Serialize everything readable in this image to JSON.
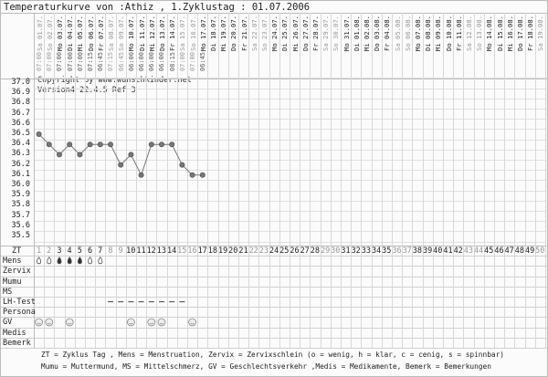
{
  "title": "Temperaturkurve von :Athiz , 1.Zyklustag : 01.07.2006",
  "copyright": "Copyright by www.wunschkinder.net",
  "version": "Version4 22.4.5 Ref 3",
  "dates": [
    "Sa 01.07.",
    "So 02.07.",
    "Mo 03.07.",
    "Di 04.07.",
    "Mi 05.07.",
    "Do 06.07.",
    "Fr 07.07.",
    "Sa 08.07.",
    "So 09.07.",
    "Mo 10.07.",
    "Di 11.07.",
    "Mi 12.07.",
    "Do 13.07.",
    "Fr 14.07.",
    "Sa 15.07.",
    "So 16.07.",
    "Mo 17.07.",
    "Di 18.07.",
    "Mi 19.07.",
    "Do 20.07.",
    "Fr 21.07.",
    "Sa 22.07.",
    "So 23.07.",
    "Mo 24.07.",
    "Di 25.07.",
    "Mi 26.07.",
    "Do 27.07.",
    "Fr 28.07.",
    "Sa 29.07.",
    "So 30.07.",
    "Mo 31.07.",
    "Di 01.08.",
    "Mi 02.08.",
    "Do 03.08.",
    "Fr 04.08.",
    "Sa 05.08.",
    "So 06.08.",
    "Mo 07.08.",
    "Di 08.08.",
    "Mi 09.08.",
    "Do 10.08.",
    "Fr 11.08.",
    "Sa 12.08.",
    "So 13.08.",
    "Mo 14.08.",
    "Di 15.08.",
    "Mi 16.08.",
    "Do 17.08.",
    "Fr 18.08.",
    "Sa 19.08."
  ],
  "times": [
    "07:00",
    "07:00",
    "07:00",
    "07:00",
    "07:00",
    "07:15",
    "06:45",
    "07:15",
    "06:45",
    "06:00",
    "06:00",
    "06:00",
    "06:00",
    "08:15",
    "07:00",
    "07:00",
    "06:45"
  ],
  "row_labels": [
    "ZT",
    "Mens",
    "Zervix",
    "Mumu",
    "MS",
    "LH-Test",
    "Persona",
    "GV",
    "Medis",
    "Bemerk"
  ],
  "legend": [
    "ZT = Zyklus Tag , Mens = Menstruation, Zervix = Zervixschlein (o = wenig, h = klar, c = cenig, s = spinnbar)",
    "Mumu = Muttermund, MS = Mittelschmerz, GV = Geschlechtsverkehr ,Medis = Medikamente, Bemerk = Bemerkungen"
  ],
  "chart_data": {
    "type": "line",
    "ylim": [
      35.5,
      37.0
    ],
    "yticks": [
      "37.0",
      "36.9",
      "36.8",
      "36.7",
      "36.6",
      "36.5",
      "36.4",
      "36.3",
      "36.2",
      "36.1",
      "36.0",
      "35.9",
      "35.8",
      "35.7",
      "35.6",
      "35.5"
    ],
    "x": [
      1,
      2,
      3,
      4,
      5,
      6,
      7,
      8,
      9,
      10,
      11,
      12,
      13,
      14,
      15,
      16,
      17
    ],
    "values": [
      36.5,
      36.4,
      36.3,
      36.4,
      36.3,
      36.4,
      36.4,
      36.4,
      36.2,
      36.3,
      36.1,
      36.4,
      36.4,
      36.4,
      36.2,
      36.1,
      36.1
    ],
    "cycle_days": 50,
    "grid": true,
    "line_color": "#777777",
    "mens": {
      "light": [
        1,
        2,
        6,
        7
      ],
      "heavy": [
        3,
        4,
        5
      ]
    },
    "lh_test_negative": [
      8,
      9,
      10,
      11,
      12,
      13,
      14,
      15
    ],
    "gv": [
      1,
      2,
      4,
      10,
      12,
      13,
      16
    ]
  }
}
